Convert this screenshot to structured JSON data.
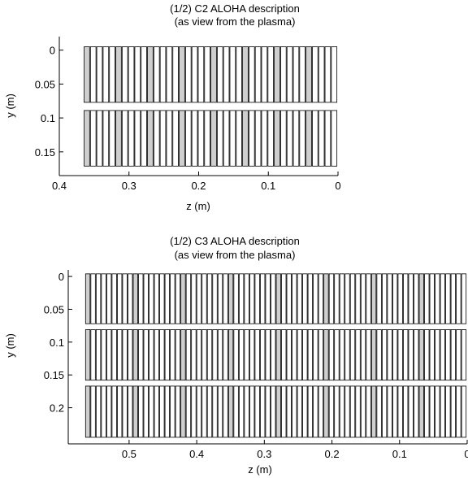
{
  "chart_data": [
    {
      "type": "rectangles",
      "title": "(1/2) C2 ALOHA description",
      "subtitle": "(as view from the plasma)",
      "xlabel": "z (m)",
      "ylabel": "y (m)",
      "xlim": [
        0.4,
        0
      ],
      "ylim": [
        0.185,
        -0.02
      ],
      "xticks": [
        0.4,
        0.3,
        0.2,
        0.1,
        0
      ],
      "yticks": [
        0,
        0.05,
        0.1,
        0.15
      ],
      "xtick_labels": [
        "0.4",
        "0.3",
        "0.2",
        "0.1",
        "0"
      ],
      "ytick_labels": [
        "0",
        "0.05",
        "0.1",
        "0.15"
      ],
      "grid": false,
      "waveguide_rows": [
        {
          "y_top": -0.005,
          "y_bottom": 0.077
        },
        {
          "y_top": 0.089,
          "y_bottom": 0.171
        }
      ],
      "z_extent": [
        0.365,
        0.001
      ],
      "modules": 8,
      "waveguides_per_module": 4,
      "passive_waveguide_color": "#cfcfcf",
      "active_waveguide_color": "#ffffff"
    },
    {
      "type": "rectangles",
      "title": "(1/2) C3 ALOHA description",
      "subtitle": "(as view from the plasma)",
      "xlabel": "z (m)",
      "ylabel": "y (m)",
      "xlim": [
        0.59,
        0
      ],
      "ylim": [
        0.255,
        -0.01
      ],
      "xticks": [
        0.5,
        0.4,
        0.3,
        0.2,
        0.1,
        0
      ],
      "yticks": [
        0,
        0.05,
        0.1,
        0.15,
        0.2
      ],
      "xtick_labels": [
        "0.5",
        "0.4",
        "0.3",
        "0.2",
        "0.1",
        "0"
      ],
      "ytick_labels": [
        "0",
        "0.05",
        "0.1",
        "0.15",
        "0.2"
      ],
      "grid": false,
      "waveguide_rows": [
        {
          "y_top": -0.004,
          "y_bottom": 0.072
        },
        {
          "y_top": 0.081,
          "y_bottom": 0.158
        },
        {
          "y_top": 0.167,
          "y_bottom": 0.245
        }
      ],
      "z_extent": [
        0.565,
        0.001
      ],
      "modules": 8,
      "waveguides_per_module": 8,
      "passive_waveguide_color": "#cfcfcf",
      "active_waveguide_color": "#ffffff"
    }
  ]
}
